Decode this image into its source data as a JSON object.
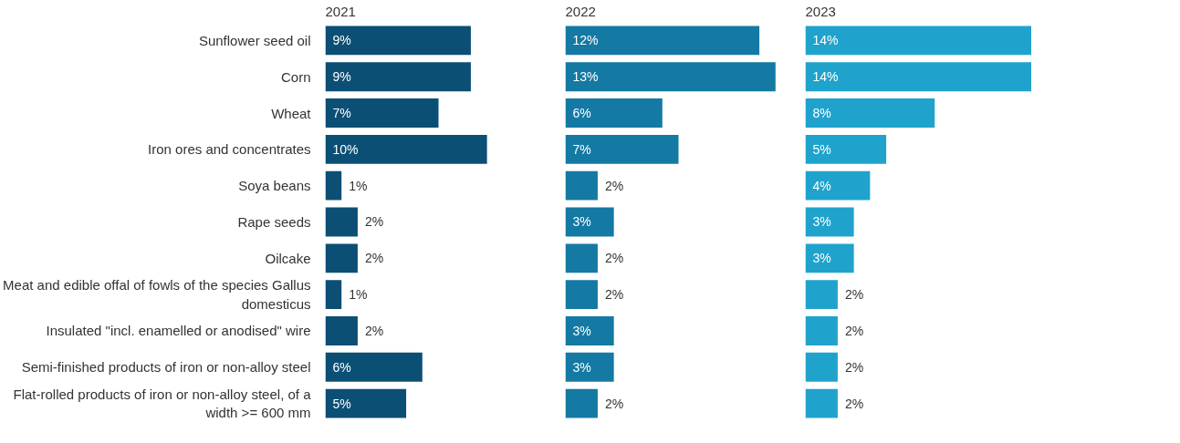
{
  "chart_data": [
    {
      "type": "bar",
      "orientation": "horizontal",
      "title": "2021",
      "categories": [
        "Sunflower seed oil",
        "Corn",
        "Wheat",
        "Iron ores and concentrates",
        "Soya beans",
        "Rape seeds",
        "Oilcake",
        "Meat and edible offal of fowls of the species Gallus domesticus",
        "Insulated \"incl. enamelled or anodised\" wire",
        "Semi-finished products of iron or non-alloy steel",
        "Flat-rolled products of iron or non-alloy steel, of a width >= 600 mm"
      ],
      "values": [
        9,
        9,
        7,
        10,
        1,
        2,
        2,
        1,
        2,
        6,
        5
      ],
      "value_labels": [
        "9%",
        "9%",
        "7%",
        "10%",
        "1%",
        "2%",
        "2%",
        "1%",
        "2%",
        "6%",
        "5%"
      ],
      "color": "#0b4f75",
      "tick_labels": "y"
    },
    {
      "type": "bar",
      "orientation": "horizontal",
      "title": "2022",
      "categories": [
        "Sunflower seed oil",
        "Corn",
        "Wheat",
        "Iron ores and concentrates",
        "Soya beans",
        "Rape seeds",
        "Oilcake",
        "Meat and edible offal of fowls of the species Gallus domesticus",
        "Insulated \"incl. enamelled or anodised\" wire",
        "Semi-finished products of iron or non-alloy steel",
        "Flat-rolled products of iron or non-alloy steel, of a width >= 600 mm"
      ],
      "values": [
        12,
        13,
        6,
        7,
        2,
        3,
        2,
        2,
        3,
        3,
        2
      ],
      "value_labels": [
        "12%",
        "13%",
        "6%",
        "7%",
        "2%",
        "3%",
        "2%",
        "2%",
        "3%",
        "3%",
        "2%"
      ],
      "color": "#1479a3",
      "tick_labels": false
    },
    {
      "type": "bar",
      "orientation": "horizontal",
      "title": "2023",
      "categories": [
        "Sunflower seed oil",
        "Corn",
        "Wheat",
        "Iron ores and concentrates",
        "Soya beans",
        "Rape seeds",
        "Oilcake",
        "Meat and edible offal of fowls of the species Gallus domesticus",
        "Insulated \"incl. enamelled or anodised\" wire",
        "Semi-finished products of iron or non-alloy steel",
        "Flat-rolled products of iron or non-alloy steel, of a width >= 600 mm"
      ],
      "values": [
        14,
        14,
        8,
        5,
        4,
        3,
        3,
        2,
        2,
        2,
        2
      ],
      "value_labels": [
        "14%",
        "14%",
        "8%",
        "5%",
        "4%",
        "3%",
        "3%",
        "2%",
        "2%",
        "2%",
        "2%"
      ],
      "color": "#1fa3cc",
      "tick_labels": false
    }
  ]
}
